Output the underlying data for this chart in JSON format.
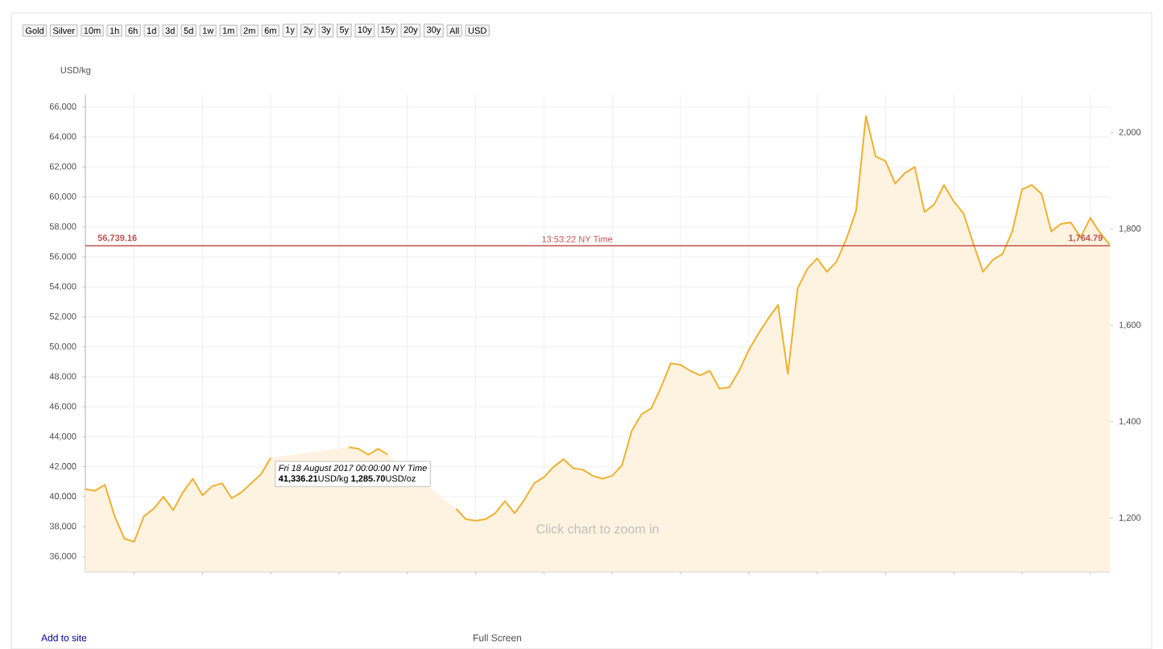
{
  "chart_data": {
    "type": "area",
    "ylabel": "USD/kg",
    "categories": [
      null,
      null,
      null,
      null,
      null,
      null,
      null,
      null,
      null,
      null,
      null,
      null,
      null,
      null,
      null,
      null,
      null,
      null,
      null,
      null,
      null,
      null,
      null,
      null,
      null,
      null,
      null,
      null,
      null,
      null,
      null,
      null,
      null,
      null,
      null,
      null,
      null,
      null,
      null,
      null,
      null,
      null,
      null,
      null,
      null,
      null,
      null,
      null,
      null,
      null,
      null,
      null,
      null,
      null,
      null,
      null,
      null,
      null,
      null,
      null,
      null,
      null,
      null,
      null,
      null,
      null,
      null,
      null,
      null,
      null,
      null,
      null,
      null,
      null,
      null,
      null,
      null,
      null,
      null,
      null,
      null,
      null,
      null,
      null,
      null,
      null,
      null,
      null,
      null,
      null,
      null,
      null,
      null,
      null,
      null,
      null,
      null,
      null,
      null,
      null,
      null,
      null,
      null,
      null,
      null,
      null
    ],
    "values": [
      40500,
      40400,
      40800,
      38700,
      37200,
      37000,
      38700,
      39200,
      40000,
      39100,
      40300,
      41200,
      40100,
      40700,
      40900,
      39900,
      40300,
      40900,
      41500,
      42600,
      null,
      null,
      null,
      null,
      null,
      null,
      null,
      43300,
      43200,
      42800,
      43200,
      42800,
      null,
      null,
      null,
      null,
      null,
      null,
      39200,
      38500,
      38400,
      38500,
      38900,
      39700,
      38900,
      39800,
      40900,
      41300,
      42000,
      42500,
      41900,
      41800,
      41400,
      41200,
      41400,
      42100,
      44400,
      45500,
      45900,
      47300,
      48900,
      48800,
      48400,
      48100,
      48400,
      47200,
      47300,
      48400,
      49800,
      50900,
      51900,
      52800,
      48200,
      53900,
      55200,
      55900,
      55000,
      55700,
      57200,
      59100,
      65400,
      62700,
      62400,
      60900,
      61600,
      62000,
      59000,
      59500,
      60800,
      59700,
      58900,
      56900,
      55000,
      55800,
      56200,
      57700,
      60500,
      60800,
      60200,
      57700,
      58200,
      58300,
      57300,
      58600,
      57600,
      56800
    ],
    "color": "#f0b030",
    "ylim": [
      35000,
      66800
    ],
    "yticks": [
      {
        "value": 36000,
        "label": "36,000"
      },
      {
        "value": 38000,
        "label": "38,000"
      },
      {
        "value": 40000,
        "label": "40,000"
      },
      {
        "value": 42000,
        "label": "42,000"
      },
      {
        "value": 44000,
        "label": "44,000"
      },
      {
        "value": 46000,
        "label": "46,000"
      },
      {
        "value": 48000,
        "label": "48,000"
      },
      {
        "value": 50000,
        "label": "50,000"
      },
      {
        "value": 52000,
        "label": "52,000"
      },
      {
        "value": 54000,
        "label": "54,000"
      },
      {
        "value": 56000,
        "label": "56,000"
      },
      {
        "value": 58000,
        "label": "58,000"
      },
      {
        "value": 60000,
        "label": "60,000"
      },
      {
        "value": 62000,
        "label": "62,000"
      },
      {
        "value": 64000,
        "label": "64,000"
      },
      {
        "value": 66000,
        "label": "66,000"
      }
    ],
    "y2lim": [
      1089,
      2078
    ],
    "y2ticks": [
      {
        "value": 1200,
        "label": "1,200"
      },
      {
        "value": 1400,
        "label": "1,400"
      },
      {
        "value": 1600,
        "label": "1,600"
      },
      {
        "value": 1800,
        "label": "1,800"
      },
      {
        "value": 2000,
        "label": "2,000"
      }
    ],
    "ref_lines": [
      {
        "axis": "y",
        "value": 56739.16,
        "label": "56,739.16",
        "color": "#c0504d"
      }
    ],
    "grid": true,
    "annotations": [
      "Gold",
      "Silver",
      "10m",
      "1h",
      "6h",
      "1d",
      "3d",
      "5d",
      "1w",
      "1m",
      "2m",
      "6m",
      "1y",
      "2y",
      "3y",
      "5y",
      "10y",
      "15y",
      "20y",
      "30y",
      "All",
      "USD",
      "13:53:22 NY Time",
      "*Fri 18 August 2017 00:00:00 NY Time*",
      "**41,336.21**USD/kg **1,285.70**USD/oz",
      "Click chart to zoom in",
      "Add to site",
      "Full Screen",
      "1,764.79"
    ]
  }
}
